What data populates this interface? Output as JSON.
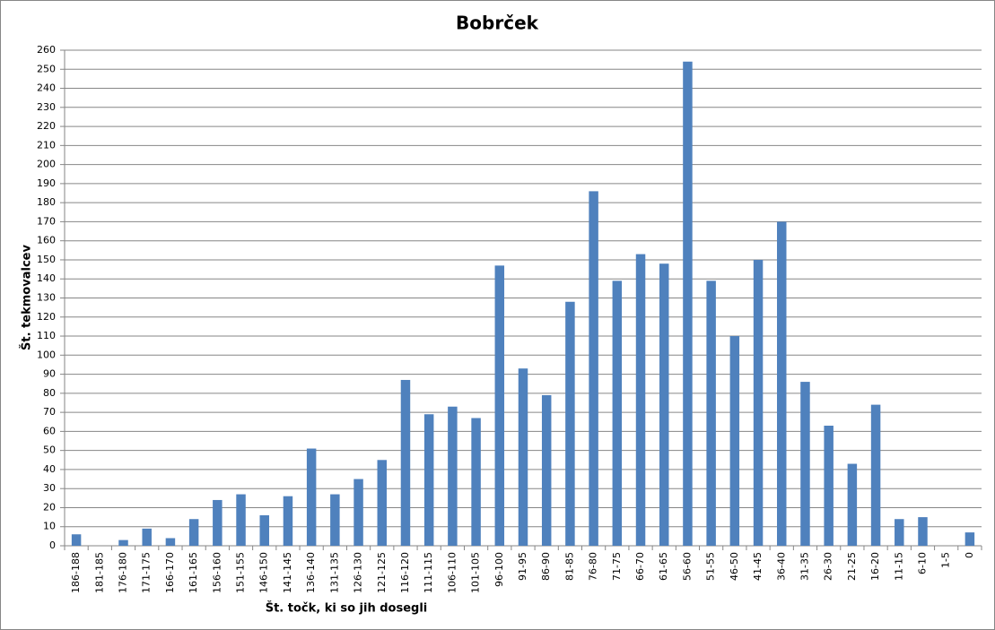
{
  "chart_data": {
    "type": "bar",
    "title": "Bobrček",
    "x_label": "Št. točk, ki so jih dosegli",
    "y_label": "Št. tekmovalcev",
    "categories": [
      "186-188",
      "181-185",
      "176-180",
      "171-175",
      "166-170",
      "161-165",
      "156-160",
      "151-155",
      "146-150",
      "141-145",
      "136-140",
      "131-135",
      "126-130",
      "121-125",
      "116-120",
      "111-115",
      "106-110",
      "101-105",
      "96-100",
      "91-95",
      "86-90",
      "81-85",
      "76-80",
      "71-75",
      "66-70",
      "61-65",
      "56-60",
      "51-55",
      "46-50",
      "41-45",
      "36-40",
      "31-35",
      "26-30",
      "21-25",
      "16-20",
      "11-15",
      "6-10",
      "1-5",
      "0"
    ],
    "values": [
      6,
      0,
      3,
      9,
      4,
      14,
      24,
      27,
      16,
      26,
      51,
      27,
      35,
      45,
      87,
      69,
      73,
      67,
      147,
      93,
      79,
      128,
      186,
      139,
      153,
      148,
      254,
      139,
      110,
      150,
      170,
      86,
      63,
      43,
      74,
      14,
      15,
      0,
      7
    ],
    "color": "#4f81bd",
    "ylim": [
      0,
      260
    ],
    "yticks": [
      0,
      10,
      20,
      30,
      40,
      50,
      60,
      70,
      80,
      90,
      100,
      110,
      120,
      130,
      140,
      150,
      160,
      170,
      180,
      190,
      200,
      210,
      220,
      230,
      240,
      250,
      260
    ],
    "grid": true
  }
}
